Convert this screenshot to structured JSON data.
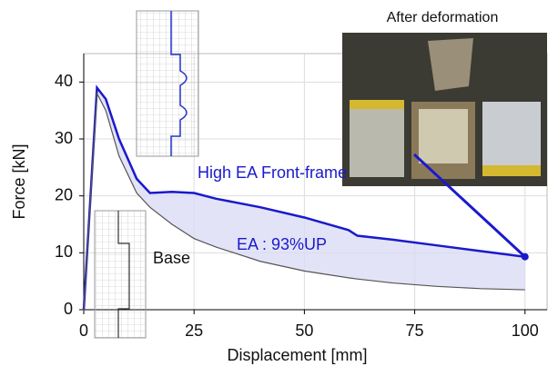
{
  "chart_data": {
    "type": "line",
    "annotations": [
      "After deformation",
      "EA : 93%UP"
    ],
    "x_label": "Displacement [mm]",
    "y_label": "Force [kN]",
    "x": [
      0,
      3,
      5,
      8,
      12,
      15,
      20,
      25,
      30,
      40,
      50,
      60,
      62,
      70,
      80,
      90,
      100
    ],
    "series": [
      {
        "name": "High EA Front-frame",
        "color": "#1a1acc",
        "values": [
          0,
          39,
          37,
          30,
          23,
          20.5,
          20.7,
          20.5,
          19.5,
          18,
          16.2,
          14,
          13,
          12.3,
          11.3,
          10.3,
          9.3
        ]
      },
      {
        "name": "Base",
        "color": "#555555",
        "values": [
          0,
          38,
          35,
          27,
          20.5,
          18,
          15,
          12.5,
          11,
          8.5,
          6.8,
          5.6,
          5.4,
          4.7,
          4.1,
          3.7,
          3.5
        ]
      }
    ],
    "xlim": [
      0,
      105
    ],
    "ylim": [
      0,
      45
    ],
    "xticks": [
      0,
      25,
      50,
      75,
      100
    ],
    "yticks": [
      0,
      10,
      20,
      30,
      40
    ],
    "grid": true
  }
}
